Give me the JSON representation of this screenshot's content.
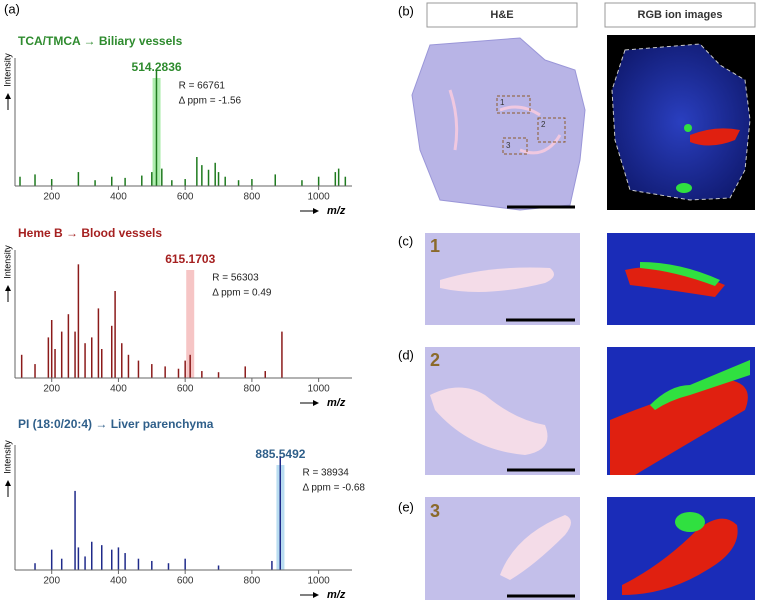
{
  "figure": {
    "panel_labels": [
      "(a)",
      "(b)",
      "(c)",
      "(d)",
      "(e)"
    ],
    "headers": [
      "H&E",
      "RGB ion images"
    ],
    "region_numbers": [
      "1",
      "2",
      "3"
    ],
    "roi_labels": [
      "1",
      "2",
      "3"
    ]
  },
  "chart_data": [
    {
      "type": "spectrum",
      "title": "TCA/TMCA → Biliary vessels",
      "title_color": "#2e8b2e",
      "color": "#1e7a1e",
      "highlight_color": "#9be89b",
      "peak": 514.2836,
      "annotations": [
        "R = 66761",
        "Δ ppm = -1.56"
      ],
      "y_label": "Intensity",
      "x_label": "m/z",
      "x": [
        105,
        150,
        200,
        280,
        330,
        380,
        420,
        470,
        500,
        514,
        530,
        560,
        600,
        635,
        650,
        670,
        690,
        700,
        720,
        760,
        800,
        870,
        950,
        1000,
        1050,
        1060,
        1080
      ],
      "values": [
        8,
        10,
        6,
        12,
        5,
        8,
        7,
        9,
        12,
        100,
        15,
        5,
        6,
        25,
        18,
        14,
        20,
        12,
        8,
        5,
        6,
        10,
        5,
        8,
        12,
        15,
        8
      ],
      "xlim": [
        90,
        1100
      ],
      "xticks": [
        200,
        400,
        600,
        800,
        1000
      ],
      "ylim": [
        0,
        100
      ]
    },
    {
      "type": "spectrum",
      "title": "Heme B → Blood vessels",
      "title_color": "#a52020",
      "color": "#8b1a1a",
      "highlight_color": "#f4b6b6",
      "peak": 615.1703,
      "annotations": [
        "R = 56303",
        "Δ ppm = 0.49"
      ],
      "y_label": "Intensity",
      "x_label": "m/z",
      "x": [
        110,
        150,
        190,
        200,
        210,
        230,
        250,
        270,
        280,
        300,
        320,
        340,
        350,
        380,
        390,
        410,
        430,
        460,
        500,
        540,
        580,
        600,
        615,
        650,
        700,
        780,
        840,
        890
      ],
      "values": [
        20,
        12,
        35,
        50,
        25,
        40,
        55,
        40,
        98,
        30,
        35,
        60,
        25,
        45,
        75,
        30,
        20,
        15,
        12,
        10,
        8,
        15,
        20,
        6,
        5,
        10,
        6,
        40
      ],
      "xlim": [
        90,
        1100
      ],
      "xticks": [
        200,
        400,
        600,
        800,
        1000
      ],
      "ylim": [
        0,
        100
      ]
    },
    {
      "type": "spectrum",
      "title": "PI (18:0/20:4) → Liver parenchyma",
      "title_color": "#2f5f8a",
      "color": "#1f2a8a",
      "highlight_color": "#a8d4ee",
      "peak": 885.5492,
      "annotations": [
        "R = 38934",
        "Δ ppm = -0.68"
      ],
      "y_label": "Intensity",
      "x_label": "m/z",
      "x": [
        150,
        200,
        230,
        270,
        280,
        300,
        320,
        350,
        380,
        400,
        420,
        460,
        500,
        550,
        600,
        700,
        860,
        885
      ],
      "values": [
        6,
        18,
        10,
        70,
        20,
        12,
        25,
        22,
        18,
        20,
        15,
        10,
        8,
        6,
        10,
        4,
        8,
        100
      ],
      "xlim": [
        90,
        1100
      ],
      "xticks": [
        200,
        400,
        600,
        800,
        1000
      ],
      "ylim": [
        0,
        100
      ]
    }
  ]
}
